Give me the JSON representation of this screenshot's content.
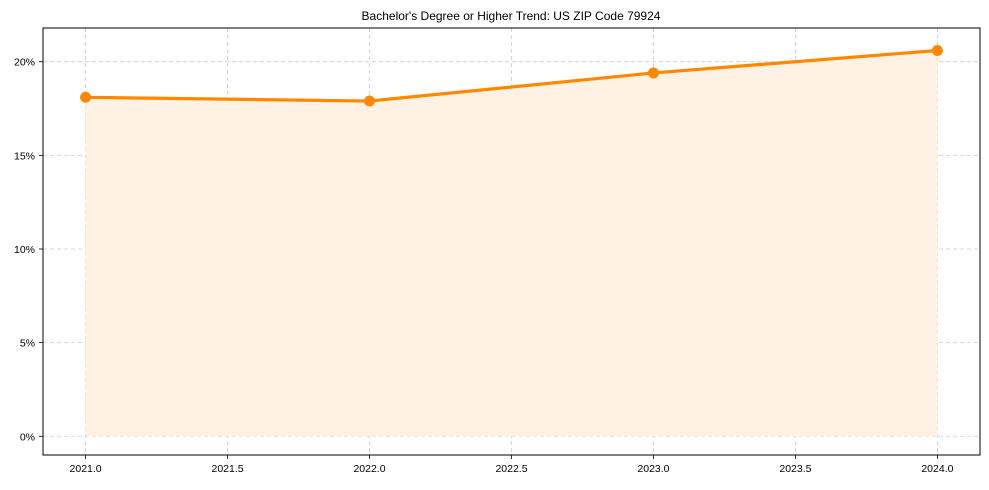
{
  "chart_data": {
    "type": "line",
    "title": "Bachelor's Degree or Higher Trend: US ZIP Code 79924",
    "xlabel": "",
    "ylabel": "",
    "x": [
      2021,
      2022,
      2023,
      2024
    ],
    "series": [
      {
        "name": "Bachelor's Degree or Higher",
        "values": [
          18.1,
          17.9,
          19.4,
          20.6
        ],
        "color": "#ff8800",
        "fill": "#fff1e3"
      }
    ],
    "xlim": [
      2020.85,
      2024.15
    ],
    "ylim": [
      -1.0,
      21.8
    ],
    "xticks": [
      2021.0,
      2021.5,
      2022.0,
      2022.5,
      2023.0,
      2023.5,
      2024.0
    ],
    "xtick_labels": [
      "2021.0",
      "2021.5",
      "2022.0",
      "2022.5",
      "2023.0",
      "2023.5",
      "2024.0"
    ],
    "yticks": [
      0,
      5,
      10,
      15,
      20
    ],
    "ytick_labels": [
      "0%",
      "5%",
      "10%",
      "15%",
      "20%"
    ],
    "grid": true,
    "legend": null
  }
}
